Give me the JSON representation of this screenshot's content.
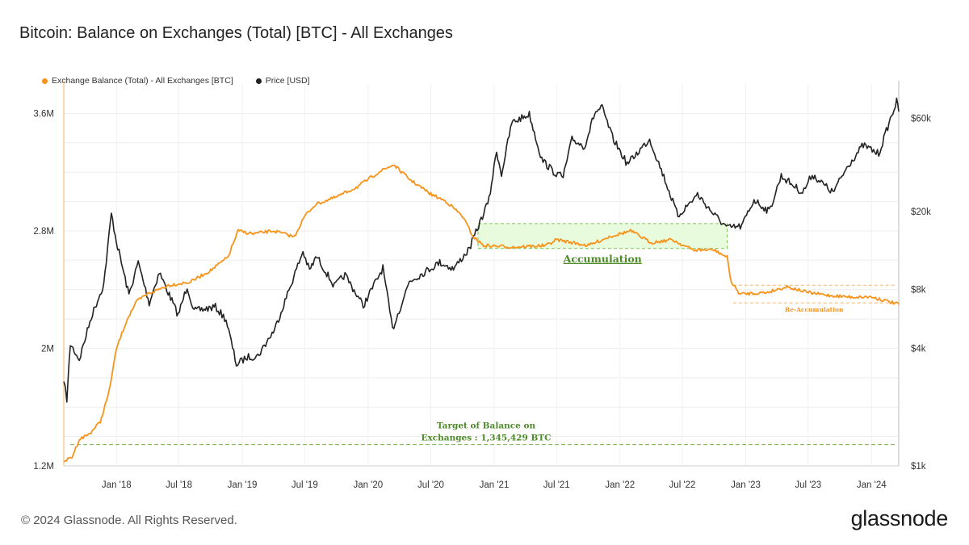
{
  "title": "Bitcoin: Balance on Exchanges (Total) [BTC] - All Exchanges",
  "footer": "© 2024 Glassnode. All Rights Reserved.",
  "brand": "glassnode",
  "colors": {
    "balance": "#f7931a",
    "price": "#222222",
    "target": "#6aaa3a",
    "accumulation_fill": "#e8fbdc",
    "accumulation_text": "#4e8a2a",
    "reaccumulation_text": "#f7931a"
  },
  "chart_data": {
    "type": "line",
    "title": "Bitcoin: Balance on Exchanges (Total) [BTC] - All Exchanges",
    "x_ticks": [
      "Jan '18",
      "Jul '18",
      "Jan '19",
      "Jul '19",
      "Jan '20",
      "Jul '20",
      "Jan '21",
      "Jul '21",
      "Jan '22",
      "Jul '22",
      "Jan '23",
      "Jul '23",
      "Jan '24"
    ],
    "y_left": {
      "ticks": [
        "1.2M",
        "2M",
        "2.8M",
        "3.6M"
      ],
      "values": [
        1200000,
        2000000,
        2800000,
        3600000
      ],
      "ylim": [
        1200000,
        3800000
      ]
    },
    "y_right": {
      "scale": "log",
      "ticks": [
        "$1k",
        "$4k",
        "$8k",
        "$20k",
        "$60k"
      ],
      "values": [
        1000,
        4000,
        8000,
        20000,
        60000
      ],
      "ylim": [
        1000,
        90000
      ]
    },
    "xlim": [
      "2017-08-01",
      "2024-03-20"
    ],
    "legend_position": "top-left",
    "series": [
      {
        "name": "Exchange Balance (Total) - All Exchanges [BTC]",
        "axis": "left",
        "points": [
          [
            "2017-08-01",
            1230000
          ],
          [
            "2017-08-25",
            1260000
          ],
          [
            "2017-09-15",
            1380000
          ],
          [
            "2017-10-15",
            1420000
          ],
          [
            "2017-11-15",
            1500000
          ],
          [
            "2017-12-10",
            1700000
          ],
          [
            "2018-01-01",
            2000000
          ],
          [
            "2018-02-01",
            2200000
          ],
          [
            "2018-03-01",
            2320000
          ],
          [
            "2018-04-01",
            2370000
          ],
          [
            "2018-06-01",
            2430000
          ],
          [
            "2018-08-01",
            2450000
          ],
          [
            "2018-10-01",
            2530000
          ],
          [
            "2018-11-20",
            2620000
          ],
          [
            "2018-12-20",
            2800000
          ],
          [
            "2019-02-01",
            2780000
          ],
          [
            "2019-04-01",
            2800000
          ],
          [
            "2019-06-01",
            2760000
          ],
          [
            "2019-07-01",
            2900000
          ],
          [
            "2019-08-01",
            2980000
          ],
          [
            "2019-10-01",
            3030000
          ],
          [
            "2019-12-01",
            3100000
          ],
          [
            "2020-02-01",
            3200000
          ],
          [
            "2020-03-15",
            3250000
          ],
          [
            "2020-05-01",
            3150000
          ],
          [
            "2020-07-01",
            3050000
          ],
          [
            "2020-08-15",
            3000000
          ],
          [
            "2020-10-01",
            2900000
          ],
          [
            "2020-11-01",
            2760000
          ],
          [
            "2020-12-01",
            2700000
          ],
          [
            "2021-03-01",
            2690000
          ],
          [
            "2021-06-01",
            2700000
          ],
          [
            "2021-07-01",
            2740000
          ],
          [
            "2021-10-01",
            2700000
          ],
          [
            "2021-12-01",
            2760000
          ],
          [
            "2022-02-01",
            2800000
          ],
          [
            "2022-04-01",
            2720000
          ],
          [
            "2022-06-01",
            2740000
          ],
          [
            "2022-08-01",
            2670000
          ],
          [
            "2022-10-01",
            2670000
          ],
          [
            "2022-11-08",
            2620000
          ],
          [
            "2022-11-20",
            2450000
          ],
          [
            "2022-12-15",
            2370000
          ],
          [
            "2023-03-01",
            2380000
          ],
          [
            "2023-05-01",
            2420000
          ],
          [
            "2023-07-01",
            2380000
          ],
          [
            "2023-09-01",
            2360000
          ],
          [
            "2023-11-01",
            2350000
          ],
          [
            "2024-01-01",
            2350000
          ],
          [
            "2024-03-20",
            2300000
          ]
        ]
      },
      {
        "name": "Price [USD]",
        "axis": "right",
        "points": [
          [
            "2017-08-01",
            2700
          ],
          [
            "2017-08-10",
            2200
          ],
          [
            "2017-08-20",
            4200
          ],
          [
            "2017-09-15",
            3500
          ],
          [
            "2017-10-20",
            5800
          ],
          [
            "2017-11-25",
            8500
          ],
          [
            "2017-12-17",
            19500
          ],
          [
            "2018-01-01",
            14000
          ],
          [
            "2018-02-06",
            7500
          ],
          [
            "2018-03-05",
            11000
          ],
          [
            "2018-04-06",
            6800
          ],
          [
            "2018-05-05",
            9800
          ],
          [
            "2018-06-29",
            5900
          ],
          [
            "2018-07-25",
            8300
          ],
          [
            "2018-08-14",
            6200
          ],
          [
            "2018-10-15",
            6500
          ],
          [
            "2018-11-15",
            5600
          ],
          [
            "2018-12-15",
            3300
          ],
          [
            "2019-01-15",
            3600
          ],
          [
            "2019-02-15",
            3650
          ],
          [
            "2019-04-05",
            5000
          ],
          [
            "2019-06-26",
            12500
          ],
          [
            "2019-07-15",
            10000
          ],
          [
            "2019-08-05",
            11800
          ],
          [
            "2019-09-25",
            8300
          ],
          [
            "2019-10-26",
            9500
          ],
          [
            "2019-12-18",
            6600
          ],
          [
            "2020-02-13",
            10300
          ],
          [
            "2020-03-12",
            5000
          ],
          [
            "2020-04-30",
            8800
          ],
          [
            "2020-06-01",
            9500
          ],
          [
            "2020-07-27",
            11000
          ],
          [
            "2020-09-05",
            10200
          ],
          [
            "2020-10-21",
            12900
          ],
          [
            "2020-12-17",
            23000
          ],
          [
            "2021-01-08",
            41000
          ],
          [
            "2021-01-22",
            31000
          ],
          [
            "2021-02-21",
            57000
          ],
          [
            "2021-04-13",
            63000
          ],
          [
            "2021-05-19",
            37000
          ],
          [
            "2021-06-22",
            32000
          ],
          [
            "2021-07-20",
            30000
          ],
          [
            "2021-08-15",
            47000
          ],
          [
            "2021-09-20",
            43000
          ],
          [
            "2021-10-20",
            64000
          ],
          [
            "2021-11-10",
            68000
          ],
          [
            "2021-12-10",
            48000
          ],
          [
            "2022-01-22",
            35000
          ],
          [
            "2022-03-28",
            47000
          ],
          [
            "2022-05-12",
            29000
          ],
          [
            "2022-06-18",
            19000
          ],
          [
            "2022-08-14",
            24500
          ],
          [
            "2022-09-30",
            19400
          ],
          [
            "2022-11-09",
            16500
          ],
          [
            "2022-12-20",
            16800
          ],
          [
            "2023-01-25",
            23000
          ],
          [
            "2023-03-10",
            20000
          ],
          [
            "2023-04-14",
            30500
          ],
          [
            "2023-06-15",
            25000
          ],
          [
            "2023-07-13",
            31000
          ],
          [
            "2023-09-11",
            25000
          ],
          [
            "2023-10-25",
            34500
          ],
          [
            "2023-12-08",
            43800
          ],
          [
            "2024-01-22",
            39500
          ],
          [
            "2024-02-28",
            62000
          ],
          [
            "2024-03-14",
            73000
          ],
          [
            "2024-03-20",
            65000
          ]
        ]
      }
    ],
    "annotations": [
      {
        "label": "Accumulation",
        "x": [
          "2020-11-15",
          "2022-11-08"
        ],
        "y": [
          2680000,
          2850000
        ]
      },
      {
        "label": "Re-Accumulation",
        "x": [
          "2022-11-25",
          "2024-03-10"
        ],
        "y": [
          2310000,
          2430000
        ]
      },
      {
        "label": "Target of Balance on Exchanges : 1,345,429 BTC",
        "label_lines": [
          "Target of Balance on",
          "Exchanges : 1,345,429 BTC"
        ],
        "y": 1345429
      }
    ]
  }
}
